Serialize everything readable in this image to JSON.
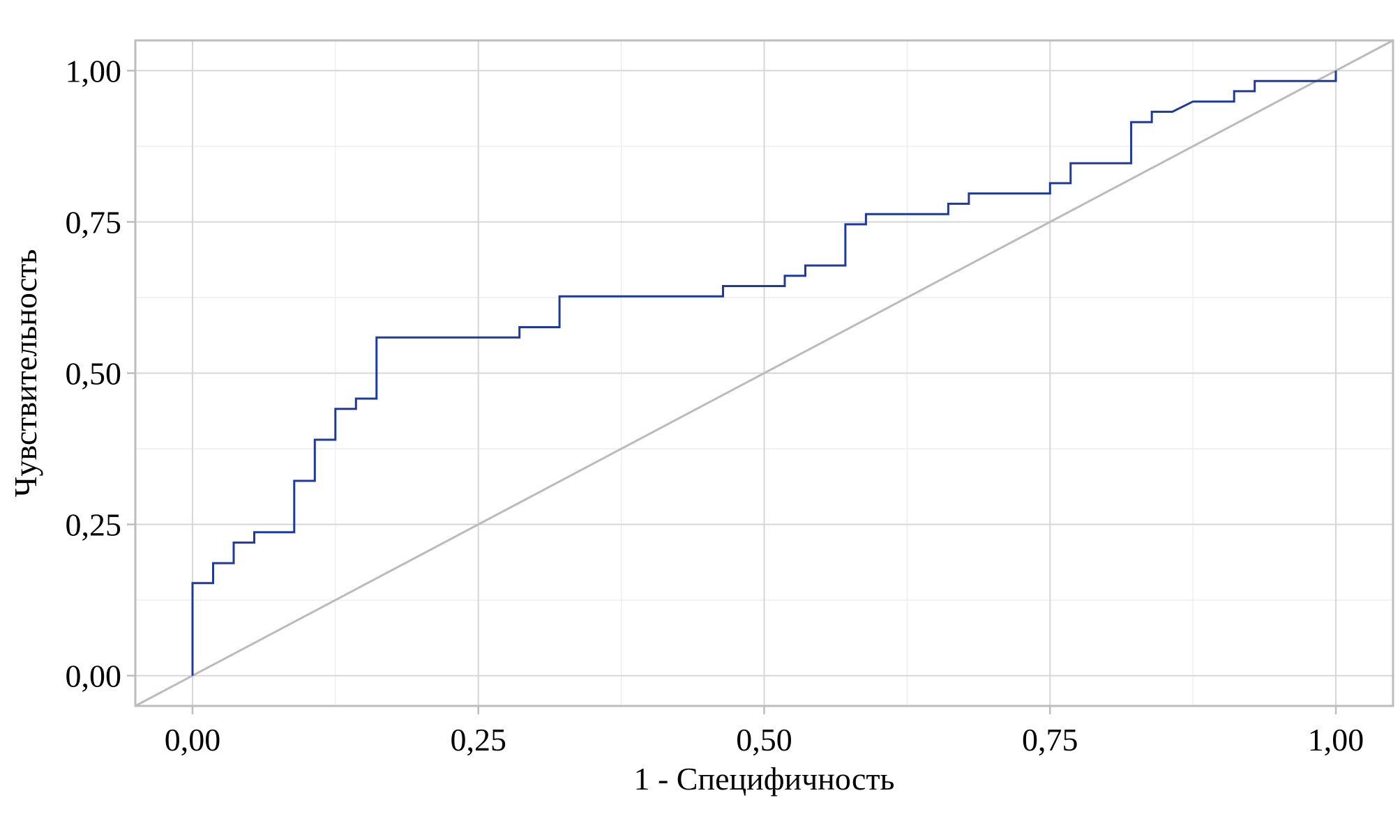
{
  "chart_data": {
    "type": "line",
    "title": "",
    "xlabel": "1 - Специфичность",
    "ylabel": "Чувствительность",
    "xlim": [
      -0.05,
      1.05
    ],
    "ylim": [
      -0.05,
      1.05
    ],
    "x_ticks": [
      0.0,
      0.25,
      0.5,
      0.75,
      1.0
    ],
    "y_ticks": [
      0.0,
      0.25,
      0.5,
      0.75,
      1.0
    ],
    "x_tick_labels": [
      "0,00",
      "0,25",
      "0,50",
      "0,75",
      "1,00"
    ],
    "y_tick_labels": [
      "0,00",
      "0,25",
      "0,50",
      "0,75",
      "1,00"
    ],
    "grid": true,
    "series": [
      {
        "color": "#1f3a9a",
        "step": true,
        "x": [
          0.0,
          0.0,
          0.018,
          0.018,
          0.036,
          0.036,
          0.054,
          0.054,
          0.089,
          0.089,
          0.107,
          0.107,
          0.125,
          0.125,
          0.143,
          0.143,
          0.161,
          0.161,
          0.286,
          0.286,
          0.321,
          0.321,
          0.464,
          0.464,
          0.518,
          0.518,
          0.536,
          0.536,
          0.571,
          0.571,
          0.589,
          0.589,
          0.661,
          0.661,
          0.679,
          0.679,
          0.75,
          0.75,
          0.768,
          0.768,
          0.821,
          0.821,
          0.839,
          0.839,
          0.857,
          0.875,
          0.911,
          0.911,
          0.929,
          0.929,
          1.0,
          1.0
        ],
        "y": [
          0.0,
          0.153,
          0.153,
          0.186,
          0.186,
          0.22,
          0.22,
          0.237,
          0.237,
          0.322,
          0.322,
          0.39,
          0.39,
          0.441,
          0.441,
          0.458,
          0.458,
          0.559,
          0.559,
          0.576,
          0.576,
          0.627,
          0.627,
          0.644,
          0.644,
          0.661,
          0.661,
          0.678,
          0.678,
          0.746,
          0.746,
          0.763,
          0.763,
          0.78,
          0.78,
          0.797,
          0.797,
          0.814,
          0.814,
          0.847,
          0.847,
          0.915,
          0.915,
          0.932,
          0.932,
          0.949,
          0.949,
          0.966,
          0.966,
          0.983,
          0.983,
          1.0
        ]
      },
      {
        "color": "#bbbbbb",
        "step": false,
        "reference": true,
        "x": [
          -0.05,
          1.05
        ],
        "y": [
          -0.05,
          1.05
        ]
      }
    ]
  }
}
